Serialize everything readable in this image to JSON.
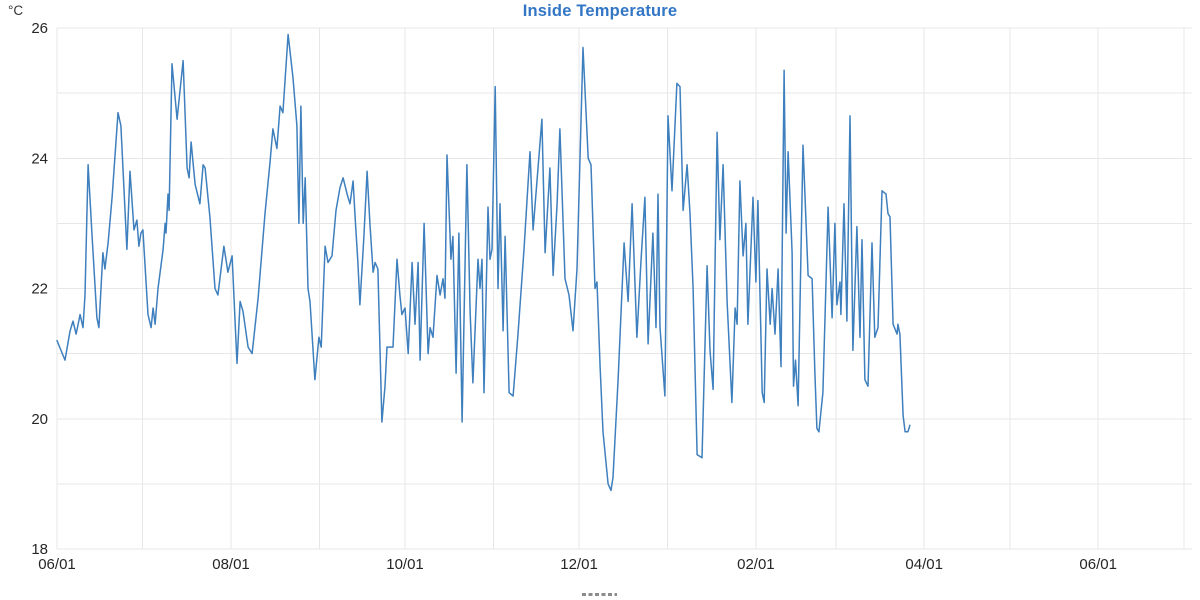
{
  "page": {
    "title": "Inside Temperature",
    "y_axis_unit": "°C"
  },
  "colors": {
    "title": "#3276c5",
    "line": "#3e7fbd",
    "grid": "#e7e7e7",
    "axis_text": "#262626",
    "unit_text": "#333333",
    "background": "#ffffff",
    "legend_dash": "#8c8c8c"
  },
  "chart_data": {
    "type": "line",
    "title": "Inside Temperature",
    "ylabel": "°C",
    "xlabel": "",
    "ylim": [
      18,
      26
    ],
    "y_labeled_ticks": [
      26,
      24,
      22,
      20,
      18
    ],
    "y_grid_step_degC": 1,
    "grid": true,
    "legend_position": "bottom-clipped-dash-marker",
    "x_unit": "days since first 06/01",
    "x_range_days": [
      0,
      398
    ],
    "x_labeled_ticks": [
      {
        "day": 0,
        "label": "06/01"
      },
      {
        "day": 61,
        "label": "08/01"
      },
      {
        "day": 122,
        "label": "10/01"
      },
      {
        "day": 183,
        "label": "12/01"
      },
      {
        "day": 245,
        "label": "02/01"
      },
      {
        "day": 304,
        "label": "04/01"
      },
      {
        "day": 365,
        "label": "06/01"
      }
    ],
    "x_month_gridlines_days": [
      0,
      30,
      61,
      92,
      122,
      153,
      183,
      214,
      245,
      273,
      304,
      334,
      365,
      395
    ],
    "series": [
      {
        "name": "Inside Temperature",
        "color": "#3e7fbd",
        "points": [
          [
            0,
            21.2
          ],
          [
            1.4,
            21.05
          ],
          [
            2.8,
            20.9
          ],
          [
            4.6,
            21.35
          ],
          [
            5.6,
            21.5
          ],
          [
            6.7,
            21.3
          ],
          [
            8.1,
            21.6
          ],
          [
            9.1,
            21.4
          ],
          [
            9.8,
            21.9
          ],
          [
            10.9,
            23.9
          ],
          [
            12.3,
            22.8
          ],
          [
            14,
            21.55
          ],
          [
            14.7,
            21.4
          ],
          [
            16.1,
            22.55
          ],
          [
            16.8,
            22.3
          ],
          [
            17.9,
            22.7
          ],
          [
            19.3,
            23.4
          ],
          [
            21.4,
            24.7
          ],
          [
            22.4,
            24.5
          ],
          [
            24.5,
            22.6
          ],
          [
            25.6,
            23.8
          ],
          [
            27,
            22.9
          ],
          [
            28,
            23.05
          ],
          [
            28.7,
            22.65
          ],
          [
            29.4,
            22.85
          ],
          [
            30.1,
            22.9
          ],
          [
            31.9,
            21.6
          ],
          [
            33,
            21.4
          ],
          [
            33.7,
            21.7
          ],
          [
            34.4,
            21.45
          ],
          [
            35.4,
            22
          ],
          [
            37.2,
            22.6
          ],
          [
            37.9,
            23
          ],
          [
            38.2,
            22.85
          ],
          [
            38.9,
            23.45
          ],
          [
            39.3,
            23.2
          ],
          [
            40.3,
            25.45
          ],
          [
            42.1,
            24.6
          ],
          [
            44.2,
            25.5
          ],
          [
            45.6,
            23.85
          ],
          [
            46.3,
            23.7
          ],
          [
            47,
            24.25
          ],
          [
            48.4,
            23.6
          ],
          [
            50.1,
            23.3
          ],
          [
            51.2,
            23.9
          ],
          [
            51.9,
            23.85
          ],
          [
            53.6,
            23.1
          ],
          [
            55.4,
            22
          ],
          [
            56.4,
            21.9
          ],
          [
            58.5,
            22.65
          ],
          [
            59.9,
            22.25
          ],
          [
            61.4,
            22.5
          ],
          [
            63.1,
            20.85
          ],
          [
            64.2,
            21.8
          ],
          [
            65.2,
            21.65
          ],
          [
            67,
            21.1
          ],
          [
            68.4,
            21
          ],
          [
            70.5,
            21.85
          ],
          [
            72.9,
            23.15
          ],
          [
            74.7,
            23.95
          ],
          [
            75.7,
            24.45
          ],
          [
            77.1,
            24.15
          ],
          [
            78.2,
            24.8
          ],
          [
            79.2,
            24.7
          ],
          [
            81,
            25.9
          ],
          [
            82.7,
            25.25
          ],
          [
            84.1,
            24.5
          ],
          [
            84.8,
            23
          ],
          [
            85.5,
            24.8
          ],
          [
            86.3,
            23
          ],
          [
            87,
            23.7
          ],
          [
            88,
            22
          ],
          [
            88.7,
            21.8
          ],
          [
            90.4,
            20.6
          ],
          [
            91.8,
            21.25
          ],
          [
            92.6,
            21.1
          ],
          [
            94,
            22.65
          ],
          [
            95,
            22.4
          ],
          [
            96.4,
            22.5
          ],
          [
            97.8,
            23.2
          ],
          [
            99.2,
            23.55
          ],
          [
            100.3,
            23.7
          ],
          [
            101.7,
            23.45
          ],
          [
            102.7,
            23.3
          ],
          [
            103.8,
            23.65
          ],
          [
            104.5,
            23.1
          ],
          [
            105.5,
            22.4
          ],
          [
            106.2,
            21.75
          ],
          [
            107.6,
            22.8
          ],
          [
            108.7,
            23.8
          ],
          [
            109.7,
            23
          ],
          [
            110.8,
            22.25
          ],
          [
            111.5,
            22.4
          ],
          [
            112.5,
            22.3
          ],
          [
            113.9,
            19.95
          ],
          [
            115,
            20.5
          ],
          [
            115.7,
            21.1
          ],
          [
            117.8,
            21.1
          ],
          [
            119.2,
            22.45
          ],
          [
            120.2,
            21.9
          ],
          [
            120.9,
            21.6
          ],
          [
            122,
            21.7
          ],
          [
            123.1,
            21
          ],
          [
            124.5,
            22.4
          ],
          [
            125.5,
            21.45
          ],
          [
            126.6,
            22.4
          ],
          [
            127.3,
            20.9
          ],
          [
            128.7,
            23
          ],
          [
            130.1,
            21
          ],
          [
            130.8,
            21.4
          ],
          [
            131.8,
            21.25
          ],
          [
            133.2,
            22.2
          ],
          [
            134.3,
            21.9
          ],
          [
            135.3,
            22.15
          ],
          [
            136,
            21.85
          ],
          [
            136.7,
            24.05
          ],
          [
            137.8,
            22.8
          ],
          [
            138.1,
            22.45
          ],
          [
            138.8,
            22.8
          ],
          [
            139.9,
            20.7
          ],
          [
            140.9,
            22.85
          ],
          [
            142,
            19.95
          ],
          [
            143.7,
            23.9
          ],
          [
            144.8,
            21.65
          ],
          [
            145.8,
            20.55
          ],
          [
            147.6,
            22.45
          ],
          [
            148.3,
            22
          ],
          [
            149,
            22.45
          ],
          [
            149.7,
            20.4
          ],
          [
            151.1,
            23.25
          ],
          [
            151.8,
            22.45
          ],
          [
            152.5,
            22.6
          ],
          [
            153.6,
            25.1
          ],
          [
            154.6,
            22
          ],
          [
            155.3,
            23.3
          ],
          [
            156.4,
            21.35
          ],
          [
            157.1,
            22.8
          ],
          [
            158.5,
            20.4
          ],
          [
            159.9,
            20.35
          ],
          [
            161.6,
            21.3
          ],
          [
            163.7,
            22.6
          ],
          [
            165.8,
            24.1
          ],
          [
            166.9,
            22.9
          ],
          [
            170,
            24.6
          ],
          [
            171.1,
            22.55
          ],
          [
            172.8,
            23.85
          ],
          [
            173.9,
            22.2
          ],
          [
            175.3,
            23.3
          ],
          [
            176.3,
            24.45
          ],
          [
            178.1,
            22.15
          ],
          [
            179.5,
            21.9
          ],
          [
            180.9,
            21.35
          ],
          [
            182.3,
            22.3
          ],
          [
            184.4,
            25.7
          ],
          [
            186.2,
            24
          ],
          [
            187.2,
            23.9
          ],
          [
            188.6,
            22
          ],
          [
            189.3,
            22.1
          ],
          [
            190.4,
            20.8
          ],
          [
            191.4,
            19.8
          ],
          [
            193.2,
            19
          ],
          [
            194.2,
            18.9
          ],
          [
            194.9,
            19.1
          ],
          [
            196.7,
            20.6
          ],
          [
            198.8,
            22.7
          ],
          [
            200.2,
            21.8
          ],
          [
            201.6,
            23.3
          ],
          [
            203.3,
            21.25
          ],
          [
            204.7,
            22.4
          ],
          [
            206.1,
            23.4
          ],
          [
            207.2,
            21.15
          ],
          [
            208.9,
            22.85
          ],
          [
            209.6,
            21.95
          ],
          [
            210,
            21.4
          ],
          [
            210.7,
            23.45
          ],
          [
            211.4,
            21.4
          ],
          [
            213.1,
            20.35
          ],
          [
            214.2,
            24.65
          ],
          [
            215.6,
            23.5
          ],
          [
            217.3,
            25.15
          ],
          [
            218.4,
            25.1
          ],
          [
            219.5,
            23.2
          ],
          [
            220.9,
            23.9
          ],
          [
            221.9,
            23.15
          ],
          [
            223,
            22
          ],
          [
            224.4,
            19.45
          ],
          [
            226.1,
            19.4
          ],
          [
            227.9,
            22.35
          ],
          [
            228.9,
            21.05
          ],
          [
            230,
            20.45
          ],
          [
            231.4,
            24.4
          ],
          [
            232.4,
            22.75
          ],
          [
            233.5,
            23.9
          ],
          [
            234.9,
            21.8
          ],
          [
            236.6,
            20.25
          ],
          [
            237.7,
            21.7
          ],
          [
            238.4,
            21.45
          ],
          [
            239.4,
            23.65
          ],
          [
            240.5,
            22.5
          ],
          [
            241.5,
            23
          ],
          [
            242.2,
            21.45
          ],
          [
            244,
            23.4
          ],
          [
            245,
            22.1
          ],
          [
            245.7,
            23.35
          ],
          [
            247.2,
            20.4
          ],
          [
            247.9,
            20.25
          ],
          [
            248.9,
            22.3
          ],
          [
            250,
            21.45
          ],
          [
            250.7,
            22
          ],
          [
            251.7,
            21.3
          ],
          [
            252.8,
            22.3
          ],
          [
            253.8,
            20.8
          ],
          [
            254.9,
            25.35
          ],
          [
            255.6,
            22.85
          ],
          [
            256.3,
            24.1
          ],
          [
            257.7,
            22.55
          ],
          [
            258.2,
            20.5
          ],
          [
            258.9,
            20.9
          ],
          [
            259.8,
            20.2
          ],
          [
            261.5,
            24.2
          ],
          [
            263.3,
            22.2
          ],
          [
            264.7,
            22.15
          ],
          [
            265.7,
            20.7
          ],
          [
            266.4,
            19.85
          ],
          [
            267.1,
            19.8
          ],
          [
            268.5,
            20.4
          ],
          [
            270.3,
            23.25
          ],
          [
            271.7,
            21.55
          ],
          [
            272.7,
            23
          ],
          [
            273.4,
            21.75
          ],
          [
            274.5,
            22.1
          ],
          [
            274.8,
            21.6
          ],
          [
            275.9,
            23.3
          ],
          [
            276.9,
            21.5
          ],
          [
            278,
            24.65
          ],
          [
            279,
            21.05
          ],
          [
            280.4,
            22.95
          ],
          [
            281.5,
            21.25
          ],
          [
            282.2,
            22.75
          ],
          [
            283.2,
            20.6
          ],
          [
            284.3,
            20.5
          ],
          [
            285.7,
            22.7
          ],
          [
            286.7,
            21.25
          ],
          [
            287.8,
            21.4
          ],
          [
            289.2,
            23.5
          ],
          [
            290.6,
            23.45
          ],
          [
            291.3,
            23.15
          ],
          [
            292,
            23.1
          ],
          [
            293.1,
            21.45
          ],
          [
            294.5,
            21.3
          ],
          [
            294.8,
            21.45
          ],
          [
            295.5,
            21.3
          ],
          [
            296.6,
            20.05
          ],
          [
            297.3,
            19.8
          ],
          [
            298.3,
            19.8
          ],
          [
            299,
            19.9
          ]
        ]
      }
    ]
  }
}
